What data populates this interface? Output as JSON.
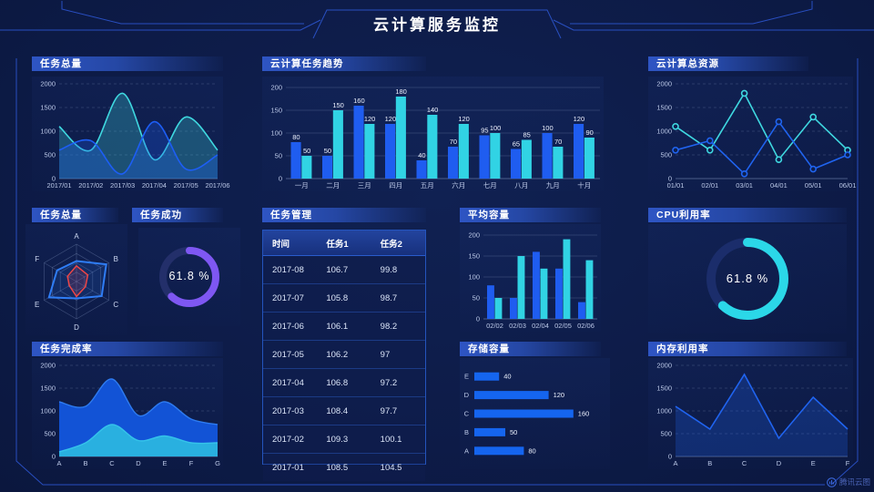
{
  "page_title": "云计算服务监控",
  "watermark": "腾讯云图",
  "colors": {
    "background": "#0d1b47",
    "frame_line": "#2e58d6",
    "accent_blue": "#1f5df0",
    "accent_cyan": "#31d3e4",
    "accent_purple": "#7e57f2",
    "accent_red": "#ef4646"
  },
  "panels": {
    "task_total_top": {
      "title": "任务总量"
    },
    "task_trend": {
      "title": "云计算任务趋势"
    },
    "cloud_resources": {
      "title": "云计算总资源"
    },
    "task_total_radar": {
      "title": "任务总量"
    },
    "task_success": {
      "title": "任务成功",
      "value": "61.8 %"
    },
    "task_management": {
      "title": "任务管理"
    },
    "avg_capacity": {
      "title": "平均容量"
    },
    "cpu_usage": {
      "title": "CPU利用率",
      "value": "61.8 %"
    },
    "task_completion": {
      "title": "任务完成率"
    },
    "storage_capacity": {
      "title": "存储容量"
    },
    "memory_usage": {
      "title": "内存利用率"
    }
  },
  "table": {
    "columns": [
      "时间",
      "任务1",
      "任务2"
    ],
    "rows": [
      [
        "2017-08",
        "106.7",
        "99.8"
      ],
      [
        "2017-07",
        "105.8",
        "98.7"
      ],
      [
        "2017-06",
        "106.1",
        "98.2"
      ],
      [
        "2017-05",
        "106.2",
        "97"
      ],
      [
        "2017-04",
        "106.8",
        "97.2"
      ],
      [
        "2017-03",
        "108.4",
        "97.7"
      ],
      [
        "2017-02",
        "109.3",
        "100.1"
      ],
      [
        "2017-01",
        "108.5",
        "104.5"
      ]
    ]
  },
  "chart_data": [
    {
      "name": "task_total_top",
      "type": "area",
      "smooth": true,
      "fill_opacity": 0.28,
      "title": "任务总量",
      "x": [
        "2017/01",
        "2017/02",
        "2017/03",
        "2017/04",
        "2017/05",
        "2017/06"
      ],
      "series": [
        {
          "name": "series-cyan",
          "color": "#3fd8e0",
          "values": [
            1100,
            600,
            1800,
            400,
            1300,
            600
          ]
        },
        {
          "name": "series-blue",
          "color": "#1d5ef5",
          "values": [
            600,
            800,
            100,
            1200,
            200,
            500
          ]
        }
      ],
      "ylim": [
        0,
        2000
      ],
      "yticks": [
        0,
        500,
        1000,
        1500,
        2000
      ],
      "grid": "dashed"
    },
    {
      "name": "task_trend",
      "type": "bar",
      "labels": true,
      "title": "云计算任务趋势",
      "categories": [
        "一月",
        "二月",
        "三月",
        "四月",
        "五月",
        "六月",
        "七月",
        "八月",
        "九月",
        "十月"
      ],
      "series": [
        {
          "name": "series-blue",
          "color": "#1f5df0",
          "values": [
            80,
            50,
            160,
            120,
            40,
            70,
            95,
            65,
            100,
            120
          ]
        },
        {
          "name": "series-cyan",
          "color": "#31d3e4",
          "values": [
            50,
            150,
            120,
            180,
            140,
            120,
            100,
            85,
            70,
            90
          ]
        }
      ],
      "ylim": [
        0,
        200
      ],
      "yticks": [
        0,
        50,
        100,
        150,
        200
      ],
      "grid": "solid"
    },
    {
      "name": "cloud_resources",
      "type": "line",
      "markers": true,
      "title": "云计算总资源",
      "x": [
        "01/01",
        "02/01",
        "03/01",
        "04/01",
        "05/01",
        "06/01"
      ],
      "series": [
        {
          "name": "series-cyan",
          "color": "#3fd8e0",
          "values": [
            1100,
            600,
            1800,
            400,
            1300,
            600
          ]
        },
        {
          "name": "series-blue",
          "color": "#2064f0",
          "values": [
            600,
            800,
            100,
            1200,
            200,
            500
          ]
        }
      ],
      "ylim": [
        0,
        2000
      ],
      "yticks": [
        0,
        500,
        1000,
        1500,
        2000
      ],
      "grid": "dashed"
    },
    {
      "name": "task_total_radar",
      "type": "radar",
      "title": "任务总量",
      "axes": [
        "A",
        "B",
        "C",
        "D",
        "E",
        "F"
      ],
      "max": 1,
      "series": [
        {
          "name": "series-blue",
          "color": "#2f7df5",
          "width": 2,
          "values": [
            0.55,
            0.92,
            0.78,
            0.45,
            0.85,
            0.6
          ]
        },
        {
          "name": "series-red",
          "color": "#ef4646",
          "width": 1.5,
          "values": [
            0.42,
            0.35,
            0.28,
            0.4,
            0.22,
            0.28
          ]
        }
      ]
    },
    {
      "name": "task_success",
      "type": "donut",
      "title": "任务成功",
      "value": 61.8,
      "label": "61.8 %",
      "color": "#7e57f2",
      "track": "#232f6a",
      "radius": 29,
      "stroke": 8
    },
    {
      "name": "avg_capacity",
      "type": "bar",
      "labels": false,
      "title": "平均容量",
      "categories": [
        "02/02",
        "02/03",
        "02/04",
        "02/05",
        "02/06"
      ],
      "series": [
        {
          "name": "series-blue",
          "color": "#1f5df0",
          "values": [
            80,
            50,
            160,
            120,
            40
          ]
        },
        {
          "name": "series-cyan",
          "color": "#31d3e4",
          "values": [
            50,
            150,
            120,
            190,
            140
          ]
        }
      ],
      "ylim": [
        0,
        200
      ],
      "yticks": [
        0,
        50,
        100,
        150,
        200
      ],
      "grid": "solid"
    },
    {
      "name": "cpu_usage",
      "type": "donut",
      "title": "CPU利用率",
      "value": 61.8,
      "label": "61.8 %",
      "color": "#2bd7e8",
      "track": "#1b2d6b",
      "radius": 40,
      "stroke": 10
    },
    {
      "name": "task_completion",
      "type": "area",
      "smooth": true,
      "fill_opacity": 1,
      "stroke_width": 1.4,
      "title": "任务完成率",
      "x": [
        "A",
        "B",
        "C",
        "D",
        "E",
        "F",
        "G"
      ],
      "series": [
        {
          "name": "series-blue",
          "color": "#1253d6",
          "stroke": "#2e7bf0",
          "values": [
            1200,
            1100,
            1700,
            900,
            1200,
            820,
            700
          ]
        },
        {
          "name": "series-cyan",
          "color": "#29b0e0",
          "stroke": "#35c3ea",
          "values": [
            100,
            300,
            700,
            350,
            450,
            300,
            300
          ]
        }
      ],
      "ylim": [
        0,
        2000
      ],
      "yticks": [
        0,
        500,
        1000,
        1500,
        2000
      ],
      "grid": "dashed"
    },
    {
      "name": "storage_capacity",
      "type": "hbar",
      "labels": true,
      "title": "存储容量",
      "categories": [
        "E",
        "D",
        "C",
        "B",
        "A"
      ],
      "values": [
        40,
        120,
        160,
        50,
        80
      ],
      "color": "#1565ef",
      "xlim": [
        0,
        175
      ]
    },
    {
      "name": "memory_usage",
      "type": "line",
      "markers": false,
      "title": "内存利用率",
      "x": [
        "A",
        "B",
        "C",
        "D",
        "E",
        "F"
      ],
      "series": [
        {
          "name": "series-blue",
          "color": "#2064f0",
          "fill": true,
          "values": [
            1100,
            600,
            1800,
            400,
            1300,
            600
          ]
        }
      ],
      "ylim": [
        0,
        2000
      ],
      "yticks": [
        0,
        500,
        1000,
        1500,
        2000
      ],
      "grid": "dashed",
      "fill_opacity": 0.25
    }
  ]
}
